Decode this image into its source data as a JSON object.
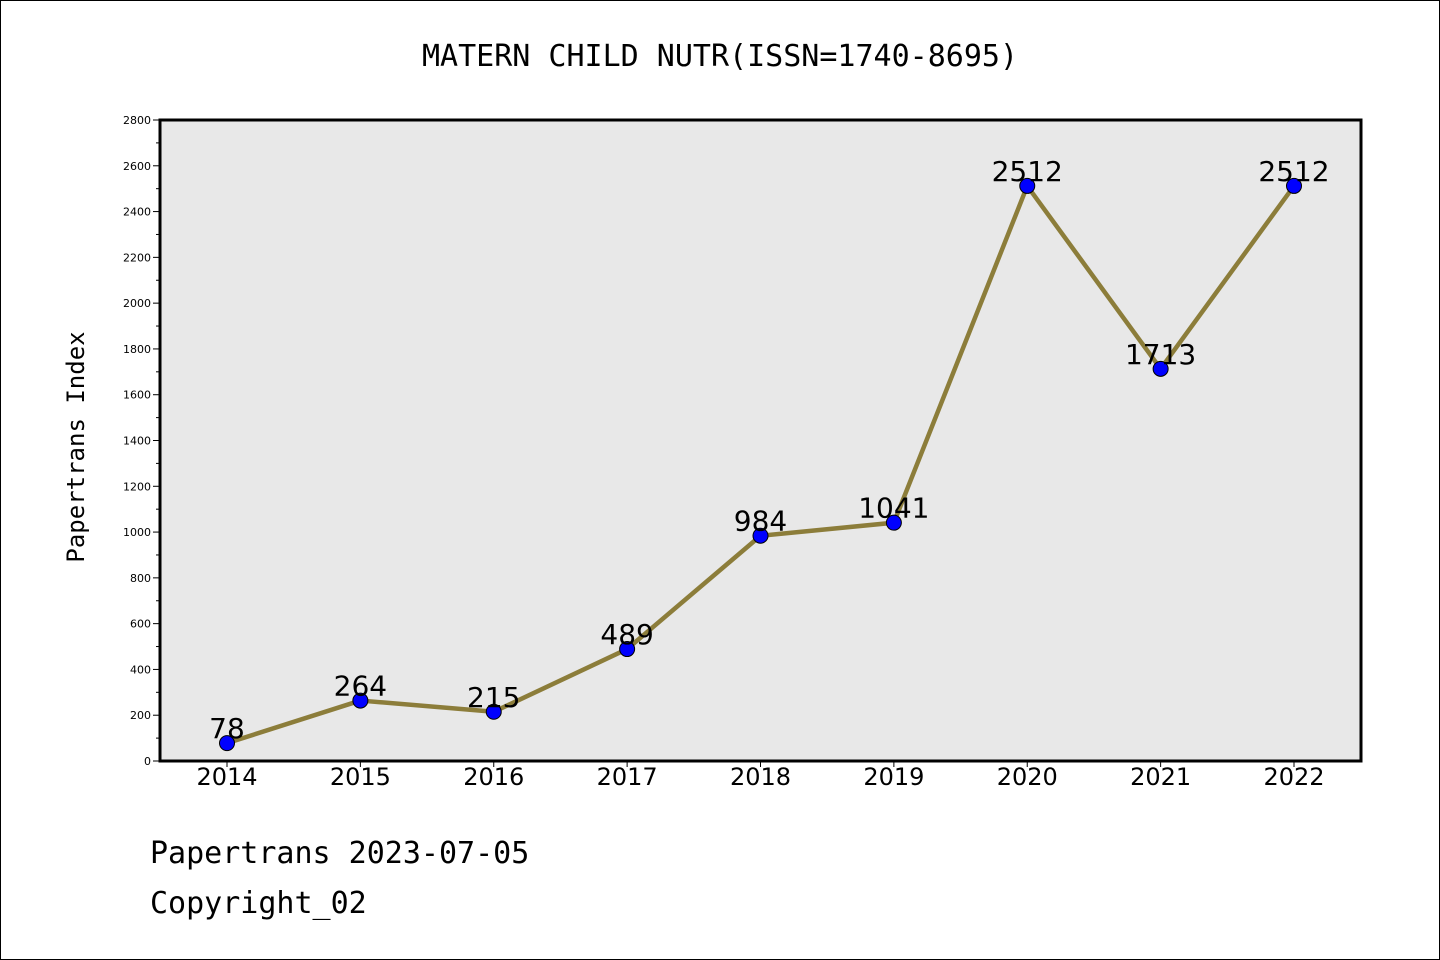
{
  "chart_data": {
    "type": "line",
    "title": "MATERN CHILD NUTR(ISSN=1740-8695)",
    "ylabel": "Papertrans Index",
    "xlabel": "",
    "categories": [
      "2014",
      "2015",
      "2016",
      "2017",
      "2018",
      "2019",
      "2020",
      "2021",
      "2022"
    ],
    "series": [
      {
        "values": [
          78,
          264,
          215,
          489,
          984,
          1041,
          2512,
          1713,
          2512
        ],
        "data_labels": [
          "78",
          "264",
          "215",
          "489",
          "984",
          "1041",
          "2512",
          "1713",
          "2512"
        ]
      }
    ],
    "ylim": [
      0,
      2800
    ],
    "yticks": [
      "0",
      "200",
      "400",
      "600",
      "800",
      "1000",
      "1200",
      "1400",
      "1600",
      "1800",
      "2000",
      "2200",
      "2400",
      "2600",
      "2800"
    ],
    "grid": false,
    "colors": {
      "line": "#8c7d3a",
      "marker": "#0000ff",
      "plot_background": "#e8e8e8"
    }
  },
  "footer": {
    "line1": "Papertrans 2023-07-05",
    "line2": "Copyright_02"
  }
}
